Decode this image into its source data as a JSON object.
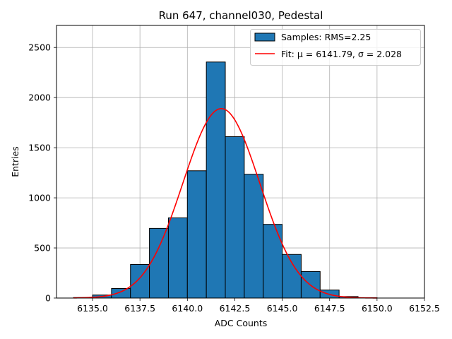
{
  "chart_data": {
    "type": "bar",
    "title": "Run 647, channel030, Pedestal",
    "xlabel": "ADC Counts",
    "ylabel": "Entries",
    "xlim": [
      6133.1,
      6152.5
    ],
    "ylim": [
      0,
      2720
    ],
    "grid": true,
    "x_ticks": [
      6135.0,
      6137.5,
      6140.0,
      6142.5,
      6145.0,
      6147.5,
      6150.0,
      6152.5
    ],
    "x_tick_labels": [
      "6135.0",
      "6137.5",
      "6140.0",
      "6142.5",
      "6145.0",
      "6147.5",
      "6150.0",
      "6152.5"
    ],
    "y_ticks": [
      0,
      500,
      1000,
      1500,
      2000,
      2500
    ],
    "y_tick_labels": [
      "0",
      "500",
      "1000",
      "1500",
      "2000",
      "2500"
    ],
    "bin_edges": [
      6134,
      6135,
      6136,
      6137,
      6138,
      6139,
      6140,
      6141,
      6142,
      6143,
      6144,
      6145,
      6146,
      6147,
      6148,
      6149,
      6150,
      6151
    ],
    "counts": [
      5,
      30,
      95,
      335,
      695,
      800,
      1270,
      2355,
      1610,
      1235,
      735,
      435,
      265,
      80,
      15,
      3,
      0
    ],
    "bar_color": "#1f77b4",
    "fit": {
      "mu": 6141.79,
      "sigma": 2.028,
      "x_range": [
        6134,
        6150
      ],
      "color": "#ff0000",
      "amplitude": 1890
    },
    "legend": {
      "position": "upper right",
      "entries": [
        "Samples: RMS=2.25",
        "Fit: μ = 6141.79, σ = 2.028"
      ]
    }
  }
}
